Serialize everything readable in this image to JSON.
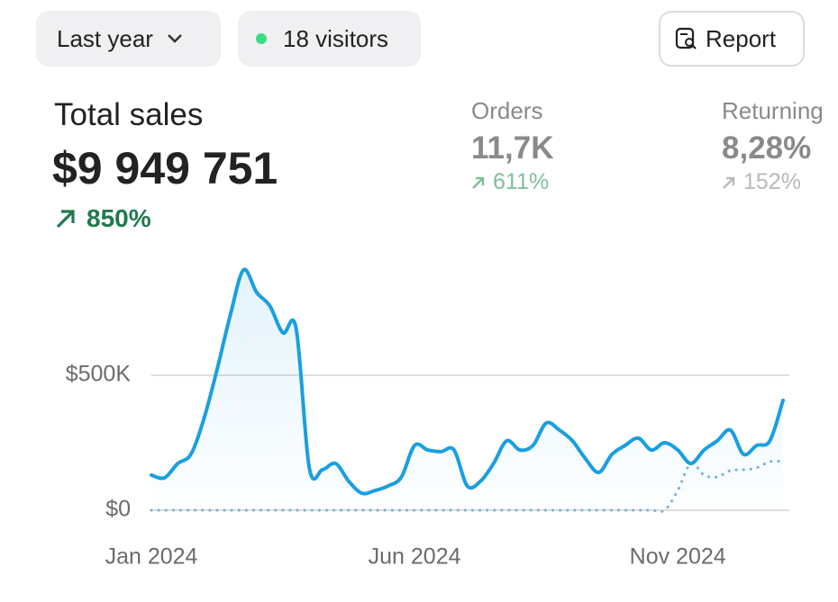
{
  "header": {
    "period": "Last year",
    "visitors": "18 visitors",
    "report": "Report"
  },
  "stats": [
    {
      "label": "Total sales",
      "value": "$9 949 751",
      "change": "850%"
    },
    {
      "label": "Orders",
      "value": "11,7K",
      "change": "611%"
    },
    {
      "label": "Returning",
      "value": "8,28%",
      "change": "152%"
    }
  ],
  "chart_data": {
    "type": "line",
    "categories": [
      "Jan 2024",
      null,
      null,
      null,
      null,
      null,
      null,
      null,
      null,
      null,
      null,
      null,
      null,
      null,
      null,
      null,
      null,
      null,
      null,
      null,
      "Jun 2024",
      null,
      null,
      null,
      null,
      null,
      null,
      null,
      null,
      null,
      null,
      null,
      null,
      null,
      null,
      null,
      null,
      null,
      null,
      null,
      "Nov 2024",
      null,
      null,
      null,
      null,
      null,
      null,
      null,
      null
    ],
    "series": [
      {
        "color": "#1a9fe0",
        "style": "solid",
        "values": [
          130000,
          120000,
          173000,
          207000,
          340000,
          523000,
          723000,
          890000,
          807000,
          757000,
          657000,
          673000,
          157000,
          150000,
          173000,
          107000,
          63000,
          73000,
          90000,
          123000,
          240000,
          223000,
          217000,
          223000,
          90000,
          107000,
          173000,
          257000,
          223000,
          240000,
          323000,
          297000,
          257000,
          190000,
          140000,
          207000,
          240000,
          267000,
          223000,
          250000,
          223000,
          173000,
          223000,
          257000,
          297000,
          207000,
          240000,
          257000,
          407000
        ]
      },
      {
        "color": "#6fb3d6",
        "style": "dotted",
        "values": [
          0,
          0,
          0,
          0,
          0,
          0,
          0,
          0,
          0,
          0,
          0,
          0,
          0,
          0,
          0,
          0,
          0,
          0,
          0,
          0,
          0,
          0,
          0,
          0,
          0,
          0,
          0,
          0,
          0,
          0,
          0,
          0,
          0,
          0,
          0,
          0,
          0,
          0,
          0,
          0,
          73000,
          173000,
          130000,
          123000,
          147000,
          150000,
          157000,
          180000,
          180000
        ]
      }
    ],
    "ylim": [
      0,
      900000
    ],
    "yticks": [
      {
        "value": 0,
        "label": "$0"
      },
      {
        "value": 500000,
        "label": "$500K"
      }
    ],
    "grid": true
  }
}
